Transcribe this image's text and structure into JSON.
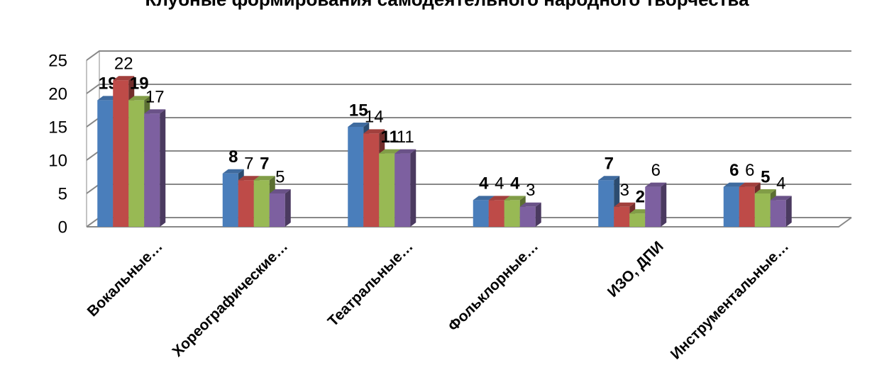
{
  "chart_data": {
    "type": "bar3d",
    "title": "Клубные формирования самодеятельного народного творчества",
    "categories": [
      "Вокальные…",
      "Хореографические…",
      "Театральные…",
      "Фольклорные…",
      "ИЗО, ДПИ",
      "Инструментальные…"
    ],
    "series": [
      {
        "color": "#4a7ebb",
        "values": [
          19,
          8,
          15,
          4,
          7,
          6
        ]
      },
      {
        "color": "#be4b48",
        "values": [
          22,
          7,
          14,
          4,
          3,
          6
        ]
      },
      {
        "color": "#98b954",
        "values": [
          19,
          7,
          11,
          4,
          2,
          5
        ]
      },
      {
        "color": "#7d60a0",
        "values": [
          17,
          5,
          11,
          3,
          6,
          4
        ]
      }
    ],
    "ylim": [
      0,
      25
    ],
    "yticks": [
      0,
      5,
      10,
      15,
      20,
      25
    ],
    "grid": true
  }
}
